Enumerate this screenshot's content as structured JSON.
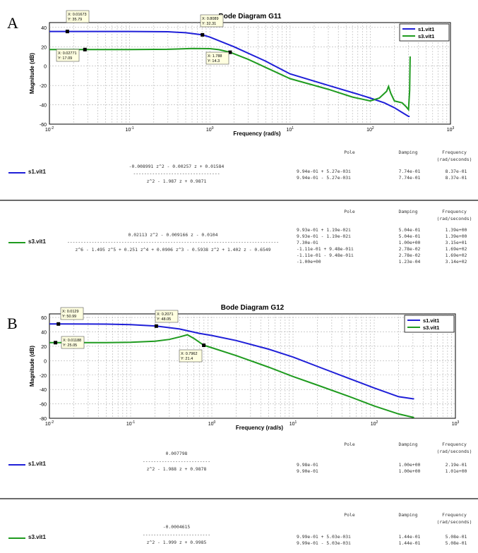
{
  "panels": [
    {
      "letter": "A",
      "title": "Bode Diagram G11",
      "ylabel": "Magnitude (dB)",
      "xlabel": "Frequency  (rad/s)",
      "yticks": [
        "40",
        "20",
        "0",
        "-20",
        "-40",
        "-60"
      ],
      "legend": [
        "s1.vit1",
        "s3.vit1"
      ],
      "datatips": [
        {
          "x": "X: 0.01673",
          "y": "Y: 35.79"
        },
        {
          "x": "X: 0.02771",
          "y": "Y: 17.09"
        },
        {
          "x": "X: 0.8089",
          "y": "Y: 32.31"
        },
        {
          "x": "X: 1.788",
          "y": "Y: 14.3"
        }
      ],
      "tables": [
        {
          "name": "s1.vit1",
          "numerator": "-0.008991 z^2 - 0.00257 z + 0.01584",
          "dashes": "--------------------------------",
          "denominator": "z^2 - 1.987 z + 0.9871",
          "header": {
            "pole": "Pole",
            "damping": "Damping",
            "frequency": "Frequency",
            "frequency_unit": "(rad/seconds)"
          },
          "rows": [
            {
              "pole": "9.94e-01 + 5.27e-03i",
              "damping": "7.74e-01",
              "frequency": "8.37e-01"
            },
            {
              "pole": "9.94e-01 - 5.27e-03i",
              "damping": "7.74e-01",
              "frequency": "8.37e-01"
            }
          ]
        },
        {
          "name": "s3.vit1",
          "numerator": "0.02113 z^2 - 0.009166 z - 0.0104",
          "dashes": "------------------------------------------------------------------------------",
          "denominator": "z^6 - 1.495 z^5 + 0.251 z^4 + 0.0906 z^3 - 0.5938 z^2 + 1.402 z - 0.6549",
          "header": {
            "pole": "Pole",
            "damping": "Damping",
            "frequency": "Frequency",
            "frequency_unit": "(rad/seconds)"
          },
          "rows": [
            {
              "pole": "9.93e-01 + 1.19e-02i",
              "damping": "5.04e-01",
              "frequency": "1.39e+00"
            },
            {
              "pole": "9.93e-01 - 1.19e-02i",
              "damping": "5.04e-01",
              "frequency": "1.39e+00"
            },
            {
              "pole": "7.30e-01",
              "damping": "1.00e+00",
              "frequency": "3.15e+01"
            },
            {
              "pole": "-1.11e-01 + 9.48e-01i",
              "damping": "2.78e-02",
              "frequency": "1.69e+02"
            },
            {
              "pole": "-1.11e-01 - 9.48e-01i",
              "damping": "2.78e-02",
              "frequency": "1.69e+02"
            },
            {
              "pole": "-1.00e+00",
              "damping": "1.23e-04",
              "frequency": "3.14e+02"
            }
          ]
        }
      ]
    },
    {
      "letter": "B",
      "title": "Bode Diagram G12",
      "ylabel": "Magnitude (dB)",
      "xlabel": "Frequency  (rad/s)",
      "yticks": [
        "60",
        "40",
        "20",
        "0",
        "-20",
        "-40",
        "-60",
        "-80"
      ],
      "legend": [
        "s1.vit1",
        "s3.vit1"
      ],
      "datatips": [
        {
          "x": "X: 0.0129",
          "y": "Y: 50.99"
        },
        {
          "x": "X: 0.01188",
          "y": "Y: 25.05"
        },
        {
          "x": "X: 0.2071",
          "y": "Y: 48.05"
        },
        {
          "x": "X: 0.7962",
          "y": "Y: 21.4"
        }
      ],
      "tables": [
        {
          "name": "s1.vit1",
          "numerator": "0.007798",
          "dashes": "-------------------------",
          "denominator": "z^2 - 1.988 z + 0.9878",
          "header": {
            "pole": "Pole",
            "damping": "Damping",
            "frequency": "Frequency",
            "frequency_unit": "(rad/seconds)"
          },
          "rows": [
            {
              "pole": "9.98e-01",
              "damping": "1.00e+00",
              "frequency": "2.19e-01"
            },
            {
              "pole": "9.90e-01",
              "damping": "1.00e+00",
              "frequency": "1.01e+00"
            }
          ]
        },
        {
          "name": "s3.vit1",
          "numerator": "-0.0004615",
          "dashes": "-------------------------",
          "denominator": "z^2 - 1.999 z + 0.9985",
          "header": {
            "pole": "Pole",
            "damping": "Damping",
            "frequency": "Frequency",
            "frequency_unit": "(rad/seconds)"
          },
          "rows": [
            {
              "pole": "9.99e-01 + 5.03e-03i",
              "damping": "1.44e-01",
              "frequency": "5.08e-01"
            },
            {
              "pole": "9.99e-01 - 5.03e-03i",
              "damping": "1.44e-01",
              "frequency": "5.08e-01"
            }
          ]
        }
      ]
    }
  ],
  "colors": {
    "s1": "#1f1fd8",
    "s3": "#1f9b1f",
    "grid": "#b0b0b0",
    "tip_bg": "#ffffe0"
  },
  "chart_data": [
    {
      "type": "line",
      "title": "Bode Diagram G11",
      "xlabel": "Frequency  (rad/s)",
      "ylabel": "Magnitude (dB)",
      "xscale": "log",
      "xlim": [
        0.01,
        1000
      ],
      "ylim": [
        -60,
        45
      ],
      "x_ticks": [
        "10^-2",
        "10^-1",
        "10^0",
        "10^1",
        "10^2",
        "10^3"
      ],
      "legend": "top-right",
      "grid": true,
      "series": [
        {
          "name": "s1.vit1",
          "x": [
            0.01,
            0.0167,
            0.1,
            0.3,
            0.5,
            0.809,
            1,
            2,
            5,
            10,
            30,
            70,
            100,
            150,
            200,
            250,
            300,
            310
          ],
          "y": [
            35.79,
            35.79,
            35.79,
            35.5,
            34.5,
            32.31,
            30,
            20,
            5,
            -8,
            -20,
            -29,
            -33,
            -38,
            -43,
            -48,
            -52,
            -52
          ]
        },
        {
          "name": "s3.vit1",
          "x": [
            0.01,
            0.0277,
            0.1,
            0.3,
            0.6,
            1,
            1.3,
            1.788,
            3,
            10,
            30,
            60,
            100,
            130,
            160,
            169,
            180,
            200,
            250,
            280,
            300,
            310,
            314
          ],
          "y": [
            17.09,
            17.09,
            17.1,
            17.4,
            18.2,
            18,
            17,
            14.3,
            7,
            -13,
            -24,
            -32,
            -36,
            -33,
            -26,
            -21,
            -28,
            -36,
            -38,
            -42,
            -45,
            -25,
            10
          ]
        }
      ],
      "datatips": [
        {
          "series": "s1.vit1",
          "x": 0.01673,
          "y": 35.79
        },
        {
          "series": "s3.vit1",
          "x": 0.02771,
          "y": 17.09
        },
        {
          "series": "s1.vit1",
          "x": 0.8089,
          "y": 32.31
        },
        {
          "series": "s3.vit1",
          "x": 1.788,
          "y": 14.3
        }
      ]
    },
    {
      "type": "line",
      "title": "Bode Diagram G12",
      "xlabel": "Frequency  (rad/s)",
      "ylabel": "Magnitude (dB)",
      "xscale": "log",
      "xlim": [
        0.01,
        1000
      ],
      "ylim": [
        -80,
        65
      ],
      "x_ticks": [
        "10^-2",
        "10^-1",
        "10^0",
        "10^1",
        "10^2",
        "10^3"
      ],
      "legend": "top-right",
      "grid": true,
      "series": [
        {
          "name": "s1.vit1",
          "x": [
            0.01,
            0.0129,
            0.05,
            0.1,
            0.2071,
            0.4,
            0.7,
            1,
            2,
            5,
            10,
            20,
            50,
            100,
            200,
            300,
            310
          ],
          "y": [
            50.99,
            50.99,
            50.8,
            50,
            48.05,
            44,
            38,
            35,
            28,
            16,
            5,
            -8,
            -25,
            -38,
            -50,
            -53,
            -53
          ]
        },
        {
          "name": "s3.vit1",
          "x": [
            0.01,
            0.01188,
            0.05,
            0.1,
            0.2,
            0.3,
            0.4,
            0.5,
            0.6,
            0.7962,
            1,
            2,
            5,
            10,
            20,
            50,
            100,
            200,
            310
          ],
          "y": [
            25.05,
            25.05,
            25.1,
            25.5,
            27,
            29.5,
            33,
            36,
            31,
            21.4,
            18,
            7,
            -9,
            -22,
            -34,
            -50,
            -63,
            -74,
            -79
          ]
        }
      ],
      "datatips": [
        {
          "series": "s1.vit1",
          "x": 0.0129,
          "y": 50.99
        },
        {
          "series": "s3.vit1",
          "x": 0.01188,
          "y": 25.05
        },
        {
          "series": "s1.vit1",
          "x": 0.2071,
          "y": 48.05
        },
        {
          "series": "s3.vit1",
          "x": 0.7962,
          "y": 21.4
        }
      ]
    }
  ]
}
